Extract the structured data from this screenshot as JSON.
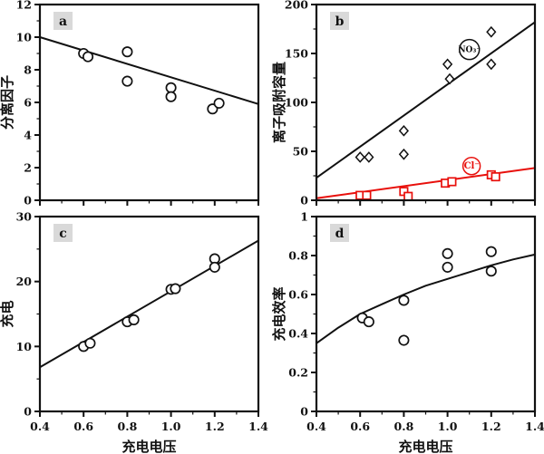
{
  "chart_data": {
    "type": "scatter",
    "layout": "2x2-grid",
    "xlabel": "充电电压",
    "x_range": [
      0.4,
      1.4
    ],
    "x_tick_values": [
      0.4,
      0.6,
      0.8,
      1.0,
      1.2,
      1.4
    ],
    "x_tick_labels": [
      "0.4",
      "0.6",
      "0.8",
      "1.0",
      "1.2",
      "1.4"
    ],
    "x_minor_ticks": [
      0.5,
      0.7,
      0.9,
      1.1,
      1.3
    ],
    "panels": [
      {
        "id": "a",
        "panel_label": "a",
        "ylabel": "分离因子",
        "ylim": [
          0,
          12
        ],
        "y_tick_values": [
          0,
          2,
          4,
          6,
          8,
          10,
          12
        ],
        "y_tick_labels": [
          "0",
          "2",
          "4",
          "6",
          "8",
          "10",
          "12"
        ],
        "y_minor_ticks": [
          1,
          3,
          5,
          7,
          9,
          11
        ],
        "show_x_tick_labels": false,
        "series": [
          {
            "name": "separation-factor",
            "marker": "circle",
            "color": "#111111",
            "points": [
              [
                0.6,
                9.0
              ],
              [
                0.62,
                8.8
              ],
              [
                0.8,
                9.1
              ],
              [
                0.8,
                7.3
              ],
              [
                1.0,
                6.9
              ],
              [
                1.0,
                6.35
              ],
              [
                1.19,
                5.6
              ],
              [
                1.22,
                5.95
              ]
            ]
          }
        ],
        "fit_lines": [
          {
            "color": "#111111",
            "points": [
              [
                0.4,
                10.0
              ],
              [
                1.4,
                5.9
              ]
            ]
          }
        ],
        "annotations": []
      },
      {
        "id": "b",
        "panel_label": "b",
        "ylabel": "离子吸附容量",
        "ylim": [
          0,
          200
        ],
        "y_tick_values": [
          0,
          50,
          100,
          150,
          200
        ],
        "y_tick_labels": [
          "0",
          "50",
          "100",
          "150",
          "200"
        ],
        "y_minor_ticks": [
          25,
          75,
          125,
          175
        ],
        "show_x_tick_labels": false,
        "series": [
          {
            "name": "nitrate",
            "marker": "diamond",
            "color": "#111111",
            "points": [
              [
                0.6,
                44
              ],
              [
                0.64,
                44
              ],
              [
                0.8,
                71
              ],
              [
                0.8,
                47
              ],
              [
                1.0,
                139
              ],
              [
                1.01,
                124
              ],
              [
                1.2,
                172
              ],
              [
                1.2,
                139
              ]
            ]
          },
          {
            "name": "chloride",
            "marker": "square",
            "color": "#e8100c",
            "points": [
              [
                0.6,
                5
              ],
              [
                0.63,
                5
              ],
              [
                0.8,
                9
              ],
              [
                0.82,
                4
              ],
              [
                0.99,
                17.5
              ],
              [
                1.02,
                19
              ],
              [
                1.2,
                26
              ],
              [
                1.22,
                24
              ]
            ]
          }
        ],
        "fit_lines": [
          {
            "color": "#111111",
            "points": [
              [
                0.4,
                23
              ],
              [
                1.4,
                182
              ]
            ]
          },
          {
            "color": "#e8100c",
            "points": [
              [
                0.4,
                2
              ],
              [
                1.4,
                33
              ]
            ]
          }
        ],
        "annotations": [
          {
            "text": "NO₃⁻",
            "x": 1.1,
            "y": 154,
            "color": "#111111",
            "r": 11,
            "font_size": 9
          },
          {
            "text": "Cl⁻",
            "x": 1.11,
            "y": 35,
            "color": "#e8100c",
            "r": 9.5,
            "font_size": 10
          }
        ]
      },
      {
        "id": "c",
        "panel_label": "c",
        "ylabel": "充电",
        "ylim": [
          0,
          30
        ],
        "y_tick_values": [
          0,
          10,
          20,
          30
        ],
        "y_tick_labels": [
          "0",
          "10",
          "20",
          "30"
        ],
        "y_minor_ticks": [
          5,
          15,
          25
        ],
        "show_x_tick_labels": true,
        "series": [
          {
            "name": "charge",
            "marker": "circle",
            "color": "#111111",
            "points": [
              [
                0.6,
                10.0
              ],
              [
                0.63,
                10.5
              ],
              [
                0.8,
                13.8
              ],
              [
                0.83,
                14.1
              ],
              [
                1.0,
                18.8
              ],
              [
                1.02,
                18.9
              ],
              [
                1.2,
                23.5
              ],
              [
                1.2,
                22.2
              ]
            ]
          }
        ],
        "fit_lines": [
          {
            "color": "#111111",
            "points": [
              [
                0.4,
                6.8
              ],
              [
                1.4,
                26.3
              ]
            ]
          }
        ],
        "annotations": []
      },
      {
        "id": "d",
        "panel_label": "d",
        "ylabel": "充电效率",
        "ylim": [
          0,
          1
        ],
        "y_tick_values": [
          0,
          0.2,
          0.4,
          0.6,
          0.8,
          1
        ],
        "y_tick_labels": [
          "0",
          "0.2",
          "0.4",
          "0.6",
          "0.8",
          "1"
        ],
        "y_minor_ticks": [
          0.1,
          0.3,
          0.5,
          0.7,
          0.9
        ],
        "show_x_tick_labels": true,
        "series": [
          {
            "name": "charge-efficiency",
            "marker": "circle",
            "color": "#111111",
            "points": [
              [
                0.61,
                0.48
              ],
              [
                0.64,
                0.46
              ],
              [
                0.8,
                0.57
              ],
              [
                0.8,
                0.365
              ],
              [
                1.0,
                0.81
              ],
              [
                1.0,
                0.74
              ],
              [
                1.2,
                0.82
              ],
              [
                1.2,
                0.72
              ]
            ]
          }
        ],
        "fit_lines": [
          {
            "color": "#111111",
            "points": [
              [
                0.4,
                0.35
              ],
              [
                0.5,
                0.43
              ],
              [
                0.6,
                0.5
              ],
              [
                0.7,
                0.55
              ],
              [
                0.8,
                0.6
              ],
              [
                0.9,
                0.645
              ],
              [
                1.0,
                0.68
              ],
              [
                1.1,
                0.715
              ],
              [
                1.2,
                0.75
              ],
              [
                1.3,
                0.78
              ],
              [
                1.4,
                0.805
              ]
            ]
          }
        ],
        "annotations": []
      }
    ]
  },
  "colors": {
    "axis": "#111111",
    "nitrate_series": "#111111",
    "chloride_series": "#e8100c",
    "panel_label_bg": "#d9d9d9",
    "background": "#ffffff"
  }
}
